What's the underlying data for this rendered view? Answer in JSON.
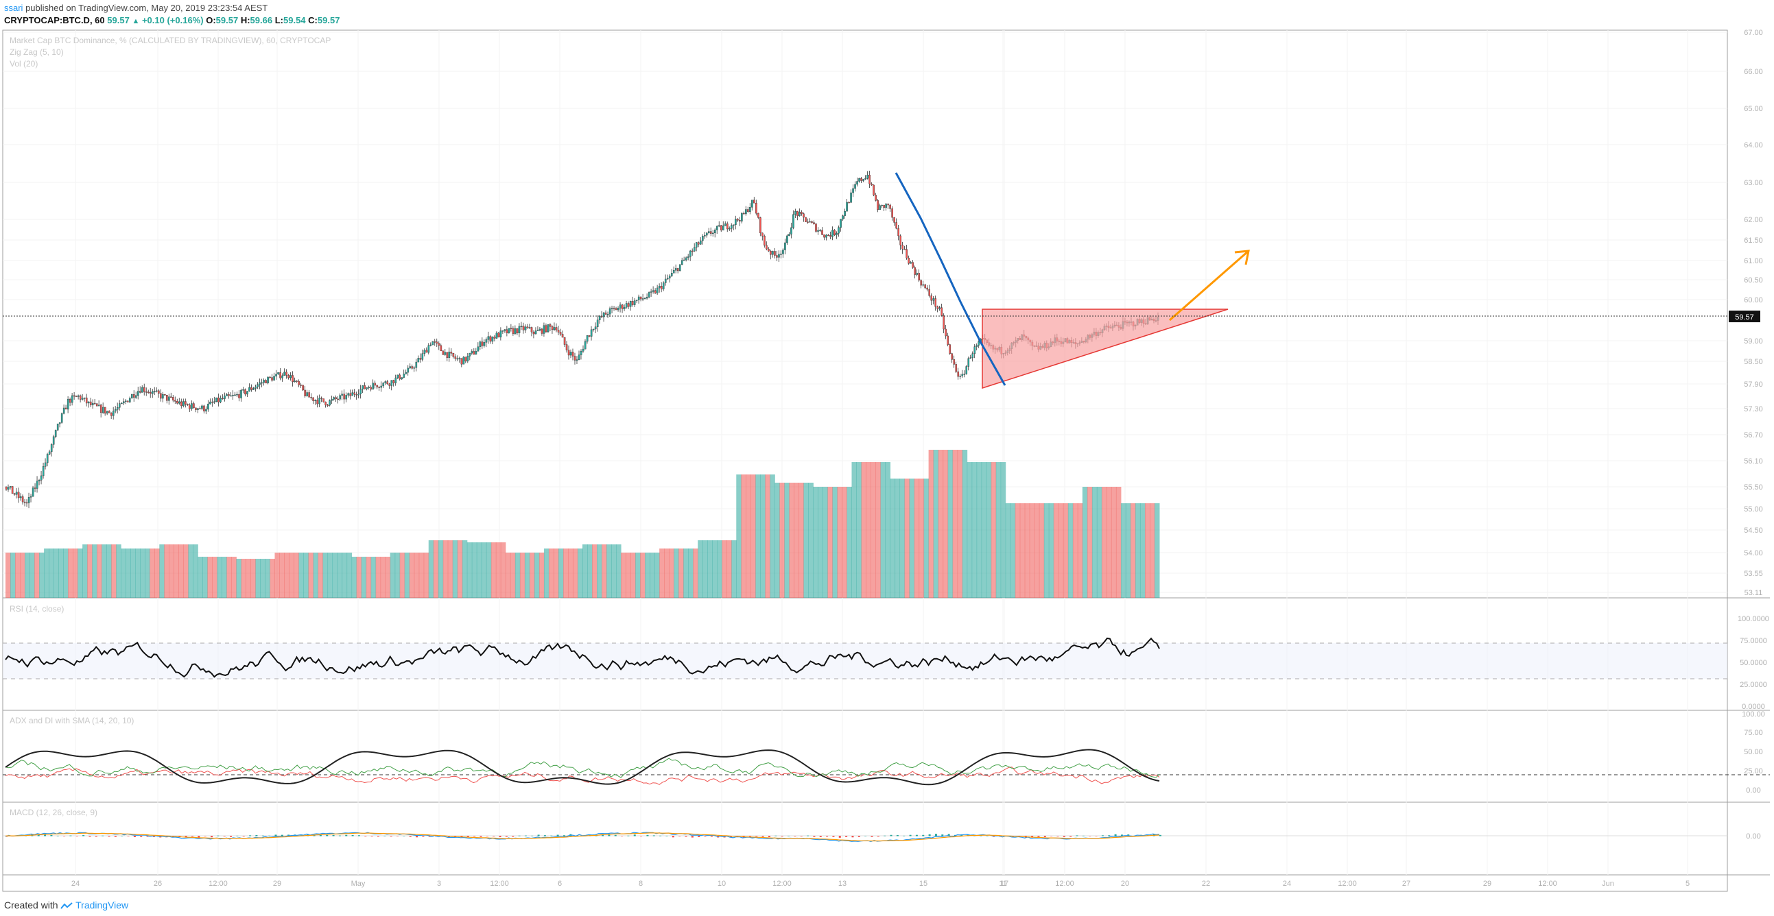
{
  "header": {
    "user": "ssari",
    "published_text": " published on TradingView.com, May 20, 2019 23:23:54 AEST",
    "symbol": "CRYPTOCAP:BTC.D, 60",
    "last": "59.57",
    "change": "+0.10 (+0.16%)",
    "open_label": "O:",
    "open": "59.57",
    "high_label": "H:",
    "high": "59.66",
    "low_label": "L:",
    "low": "59.54",
    "close_label": "C:",
    "close": "59.57"
  },
  "main_pane": {
    "title": "Market Cap BTC Dominance, % (CALCULATED BY TRADINGVIEW), 60, CRYPTOCAP",
    "zigzag": "Zig Zag (5, 10)",
    "vol": "Vol (20)",
    "price_ticks": [
      "67.00",
      "66.00",
      "65.00",
      "64.00",
      "63.00",
      "62.00",
      "61.50",
      "61.00",
      "60.50",
      "60.00",
      "59.00",
      "58.50",
      "57.90",
      "57.30",
      "56.70",
      "56.10",
      "55.50",
      "55.00",
      "54.50",
      "54.00",
      "53.55",
      "53.11"
    ],
    "last_price_badge": "59.57"
  },
  "rsi_pane": {
    "title": "RSI (14, close)",
    "ticks": [
      "100.0000",
      "75.0000",
      "50.0000",
      "25.0000",
      "0.0000"
    ]
  },
  "adx_pane": {
    "title": "ADX and DI with SMA (14, 20, 10)",
    "ticks": [
      "100.00",
      "75.00",
      "50.00",
      "25.00",
      "0.00"
    ]
  },
  "macd_pane": {
    "title": "MACD (12, 26, close, 9)",
    "ticks": [
      "0.00"
    ]
  },
  "time_axis": [
    "24",
    "26",
    "12:00",
    "29",
    "May",
    "3",
    "12:00",
    "6",
    "8",
    "10",
    "12:00",
    "13",
    "15",
    "17",
    "11",
    "12:00",
    "20",
    "22",
    "24",
    "12:00",
    "27",
    "29",
    "12:00",
    "Jun",
    "5"
  ],
  "footer": {
    "created_with": "Created with ",
    "brand": "TradingView"
  },
  "colors": {
    "up": "#26a69a",
    "down": "#ef5350",
    "zigzag": "#1565c0",
    "triangle_fill": "#f8a3a3",
    "triangle_stroke": "#e53935",
    "arrow": "#ff9800"
  },
  "chart_data": {
    "type": "candlestick",
    "price_range": [
      53.11,
      67.0
    ],
    "last_price": 59.57,
    "path": [
      55.5,
      55.3,
      55.1,
      55.6,
      56.2,
      56.9,
      57.5,
      57.6,
      57.4,
      57.3,
      57.2,
      57.35,
      57.6,
      57.8,
      57.7,
      57.6,
      57.5,
      57.4,
      57.35,
      57.3,
      57.45,
      57.55,
      57.6,
      57.7,
      57.85,
      58.0,
      58.1,
      58.2,
      57.9,
      57.6,
      57.5,
      57.45,
      57.55,
      57.6,
      57.75,
      57.85,
      57.9,
      57.95,
      58.1,
      58.3,
      58.6,
      59.0,
      58.75,
      58.6,
      58.5,
      58.7,
      59.0,
      59.1,
      59.2,
      59.25,
      59.3,
      59.2,
      59.3,
      59.35,
      58.8,
      58.5,
      59.1,
      59.5,
      59.7,
      59.8,
      59.9,
      60.0,
      60.1,
      60.3,
      60.6,
      60.9,
      61.2,
      61.5,
      61.7,
      61.8,
      61.9,
      62.1,
      62.5,
      61.4,
      61.1,
      61.3,
      62.2,
      62.0,
      61.8,
      61.6,
      61.7,
      62.4,
      63.0,
      63.2,
      62.3,
      62.4,
      61.5,
      61.0,
      60.5,
      60.1,
      59.7,
      58.6,
      58.0,
      58.7,
      59.0,
      58.8,
      58.75,
      58.9,
      59.1,
      58.8,
      58.85,
      59.0,
      59.0,
      58.9,
      59.05,
      59.2,
      59.3,
      59.35,
      59.4,
      59.45,
      59.5,
      59.57
    ],
    "volume_steps": [
      0.11,
      0.12,
      0.13,
      0.12,
      0.13,
      0.1,
      0.095,
      0.11,
      0.11,
      0.1,
      0.11,
      0.14,
      0.135,
      0.11,
      0.12,
      0.13,
      0.11,
      0.12,
      0.14,
      0.3,
      0.28,
      0.27,
      0.33,
      0.29,
      0.36,
      0.33,
      0.23,
      0.23,
      0.27,
      0.23
    ]
  }
}
